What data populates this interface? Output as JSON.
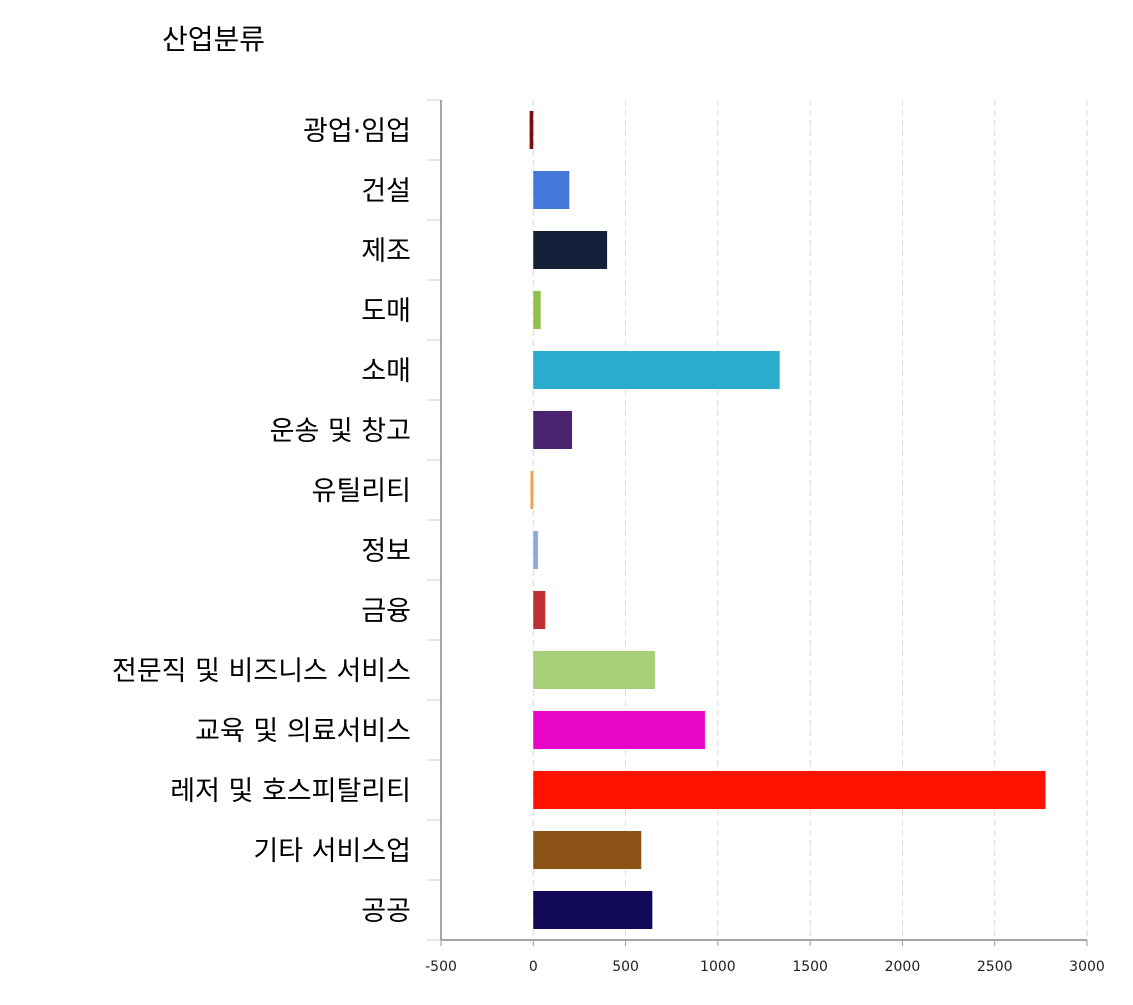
{
  "chart_data": {
    "type": "bar",
    "orientation": "horizontal",
    "title": "산업분류",
    "xlabel": "",
    "ylabel": "",
    "categories": [
      "광업·임업",
      "건설",
      "제조",
      "도매",
      "소매",
      "운송 및 창고",
      "유틸리티",
      "정보",
      "금융",
      "전문직 및 비즈니스 서비스",
      "교육 및 의료서비스",
      "레저 및 호스피탈리티",
      "기타 서비스업",
      "공공"
    ],
    "values": [
      -20,
      195,
      400,
      40,
      1335,
      210,
      -15,
      25,
      65,
      660,
      930,
      2775,
      585,
      645
    ],
    "colors": [
      "#7a0f0f",
      "#4478d8",
      "#14203a",
      "#8ec04a",
      "#2aaccf",
      "#4b2270",
      "#f0a050",
      "#8aa8dc",
      "#c03030",
      "#a6cf78",
      "#e805c8",
      "#ff1300",
      "#8b5316",
      "#110858"
    ],
    "xlim": [
      -500,
      3000
    ],
    "xticks": [
      "-500",
      "0",
      "500",
      "1000",
      "1500",
      "2000",
      "2500",
      "3000"
    ],
    "grid": "vertical-dashed",
    "legend": "none"
  }
}
